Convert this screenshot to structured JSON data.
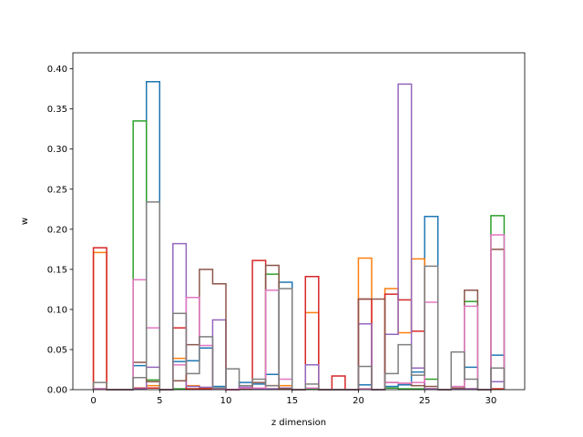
{
  "chart_data": {
    "type": "histogram-step",
    "xlabel": "z dimension",
    "ylabel": "w",
    "xlim": [
      -1.55,
      32.55
    ],
    "ylim": [
      0,
      0.42
    ],
    "xticks": [
      0,
      5,
      10,
      15,
      20,
      25,
      30
    ],
    "yticks": [
      0.0,
      0.05,
      0.1,
      0.15,
      0.2,
      0.25,
      0.3,
      0.35,
      0.4
    ],
    "ytick_labels": [
      "0.00",
      "0.05",
      "0.10",
      "0.15",
      "0.20",
      "0.25",
      "0.30",
      "0.35",
      "0.40"
    ],
    "bin_edges": [
      0,
      1,
      2,
      3,
      4,
      5,
      6,
      7,
      8,
      9,
      10,
      11,
      12,
      13,
      14,
      15,
      16,
      17,
      18,
      19,
      20,
      21,
      22,
      23,
      24,
      25,
      26,
      27,
      28,
      29,
      30,
      31
    ],
    "grid": false,
    "series": [
      {
        "color": "#1f77b4",
        "values": [
          0.001,
          0,
          0,
          0.03,
          0.384,
          0,
          0.035,
          0.036,
          0.052,
          0.004,
          0,
          0.009,
          0.007,
          0.019,
          0.134,
          0,
          0.001,
          0,
          0,
          0,
          0.006,
          0,
          0.004,
          0.006,
          0.022,
          0.216,
          0,
          0.001,
          0.028,
          0,
          0.043
        ]
      },
      {
        "color": "#ff7f0e",
        "values": [
          0.171,
          0,
          0,
          0.001,
          0.005,
          0,
          0.039,
          0.005,
          0.002,
          0.001,
          0,
          0.002,
          0.001,
          0.005,
          0.005,
          0,
          0.096,
          0,
          0,
          0,
          0.164,
          0,
          0.126,
          0.071,
          0.163,
          0.001,
          0,
          0.001,
          0.001,
          0,
          0.001
        ]
      },
      {
        "color": "#2ca02c",
        "values": [
          0.001,
          0,
          0,
          0.335,
          0.012,
          0,
          0.001,
          0.001,
          0.001,
          0.001,
          0,
          0.001,
          0.001,
          0.144,
          0.001,
          0,
          0.001,
          0,
          0,
          0,
          0.001,
          0,
          0.002,
          0.001,
          0.001,
          0.013,
          0,
          0.001,
          0.11,
          0,
          0.217
        ]
      },
      {
        "color": "#d62728",
        "values": [
          0.177,
          0,
          0,
          0.002,
          0.002,
          0,
          0.077,
          0.001,
          0.001,
          0.001,
          0,
          0.001,
          0.161,
          0.001,
          0.001,
          0,
          0.141,
          0,
          0.017,
          0,
          0.113,
          0,
          0.119,
          0.112,
          0.073,
          0.001,
          0,
          0.001,
          0.001,
          0,
          0.001
        ]
      },
      {
        "color": "#9467bd",
        "values": [
          0.001,
          0,
          0,
          0.001,
          0.028,
          0,
          0.182,
          0.004,
          0.003,
          0.087,
          0,
          0.003,
          0.001,
          0.001,
          0.002,
          0,
          0.031,
          0,
          0,
          0,
          0.082,
          0,
          0.069,
          0.381,
          0.027,
          0.001,
          0,
          0.001,
          0.001,
          0,
          0.01
        ]
      },
      {
        "color": "#8c564b",
        "values": [
          0.001,
          0,
          0,
          0.034,
          0.01,
          0,
          0.011,
          0.056,
          0.15,
          0.132,
          0,
          0.001,
          0.009,
          0.155,
          0.001,
          0,
          0.002,
          0,
          0,
          0,
          0.113,
          0.113,
          0.009,
          0.008,
          0.005,
          0.004,
          0,
          0.002,
          0.124,
          0,
          0.175
        ]
      },
      {
        "color": "#e377c2",
        "values": [
          0.001,
          0,
          0,
          0.137,
          0.077,
          0,
          0.031,
          0.115,
          0.055,
          0.001,
          0,
          0.002,
          0.002,
          0.124,
          0.013,
          0,
          0.002,
          0,
          0,
          0,
          0.001,
          0,
          0.009,
          0.008,
          0.009,
          0.109,
          0,
          0.004,
          0.104,
          0,
          0.193
        ]
      },
      {
        "color": "#7f7f7f",
        "values": [
          0.009,
          0,
          0,
          0.015,
          0.234,
          0,
          0.095,
          0.02,
          0.066,
          0.002,
          0.026,
          0.005,
          0.013,
          0.005,
          0.126,
          0,
          0.007,
          0,
          0,
          0,
          0.029,
          0,
          0.02,
          0.056,
          0.018,
          0.154,
          0,
          0.047,
          0.013,
          0,
          0.027
        ]
      }
    ]
  }
}
